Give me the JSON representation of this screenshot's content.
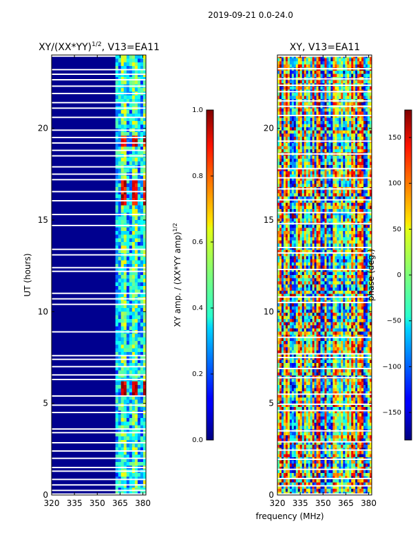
{
  "suptitle": "2019-09-21 0.0-24.0",
  "chart_data": [
    {
      "type": "heatmap",
      "title_main": "XY/(XX*YY)",
      "title_sup": "1/2",
      "title_tail": ", V13=EA11",
      "xlabel": "",
      "ylabel": "UT (hours)",
      "xlim": [
        320,
        382
      ],
      "ylim": [
        0,
        24
      ],
      "x_ticks": [
        320,
        335,
        350,
        365,
        380
      ],
      "y_ticks": [
        0,
        5,
        10,
        15,
        20
      ],
      "colorbar": {
        "label_main": "XY amp. / (XX*YY amp)",
        "label_sup": "1/2",
        "range": [
          0,
          1
        ],
        "ticks": [
          "0.0",
          "0.2",
          "0.4",
          "0.6",
          "0.8",
          "1.0"
        ],
        "tick_values": [
          0,
          0.2,
          0.4,
          0.6,
          0.8,
          1.0
        ]
      },
      "gaps_hours": [
        0.05,
        0.25,
        0.55,
        0.85,
        1.3,
        1.5,
        2.0,
        2.4,
        2.85,
        3.4,
        3.6,
        4.5,
        4.9,
        5.4,
        6.3,
        6.55,
        7.0,
        7.4,
        7.6,
        8.9,
        10.4,
        10.7,
        11.0,
        12.2,
        12.4,
        13.1,
        13.4,
        14.7,
        15.3,
        16.05,
        16.55,
        17.2,
        17.5,
        17.9,
        18.5,
        18.8,
        19.2,
        19.5,
        19.9,
        20.6,
        21.1,
        21.4,
        21.9,
        22.3,
        22.65,
        22.95,
        23.2
      ],
      "hot_spans_hours": [
        [
          15.8,
          17.1
        ],
        [
          5.5,
          6.1
        ],
        [
          19.0,
          19.6
        ]
      ],
      "active_band_mhz": [
        362,
        382
      ]
    },
    {
      "type": "heatmap",
      "title": "XY, V13=EA11",
      "xlabel": "frequency (MHz)",
      "ylabel": "",
      "xlim": [
        320,
        382
      ],
      "ylim": [
        0,
        24
      ],
      "x_ticks": [
        320,
        335,
        350,
        365,
        380
      ],
      "y_ticks": [
        0,
        5,
        10,
        15,
        20
      ],
      "colorbar": {
        "label": "phase (deg.)",
        "range": [
          -180,
          180
        ],
        "ticks": [
          "150",
          "100",
          "50",
          "0",
          "−50",
          "−100",
          "−150"
        ],
        "tick_values": [
          150,
          100,
          50,
          0,
          -50,
          -100,
          -150
        ]
      },
      "gaps_hours": [
        0.05,
        0.5,
        0.9,
        1.4,
        1.95,
        2.45,
        2.9,
        3.5,
        4.6,
        4.95,
        5.5,
        6.4,
        6.9,
        7.5,
        7.7,
        8.6,
        10.5,
        10.8,
        12.3,
        13.2,
        13.5,
        14.8,
        15.4,
        16.1,
        16.7,
        17.3,
        17.8,
        18.6,
        19.3,
        20.7,
        21.2,
        21.5,
        22.0,
        22.35,
        22.7,
        23.25
      ]
    }
  ]
}
